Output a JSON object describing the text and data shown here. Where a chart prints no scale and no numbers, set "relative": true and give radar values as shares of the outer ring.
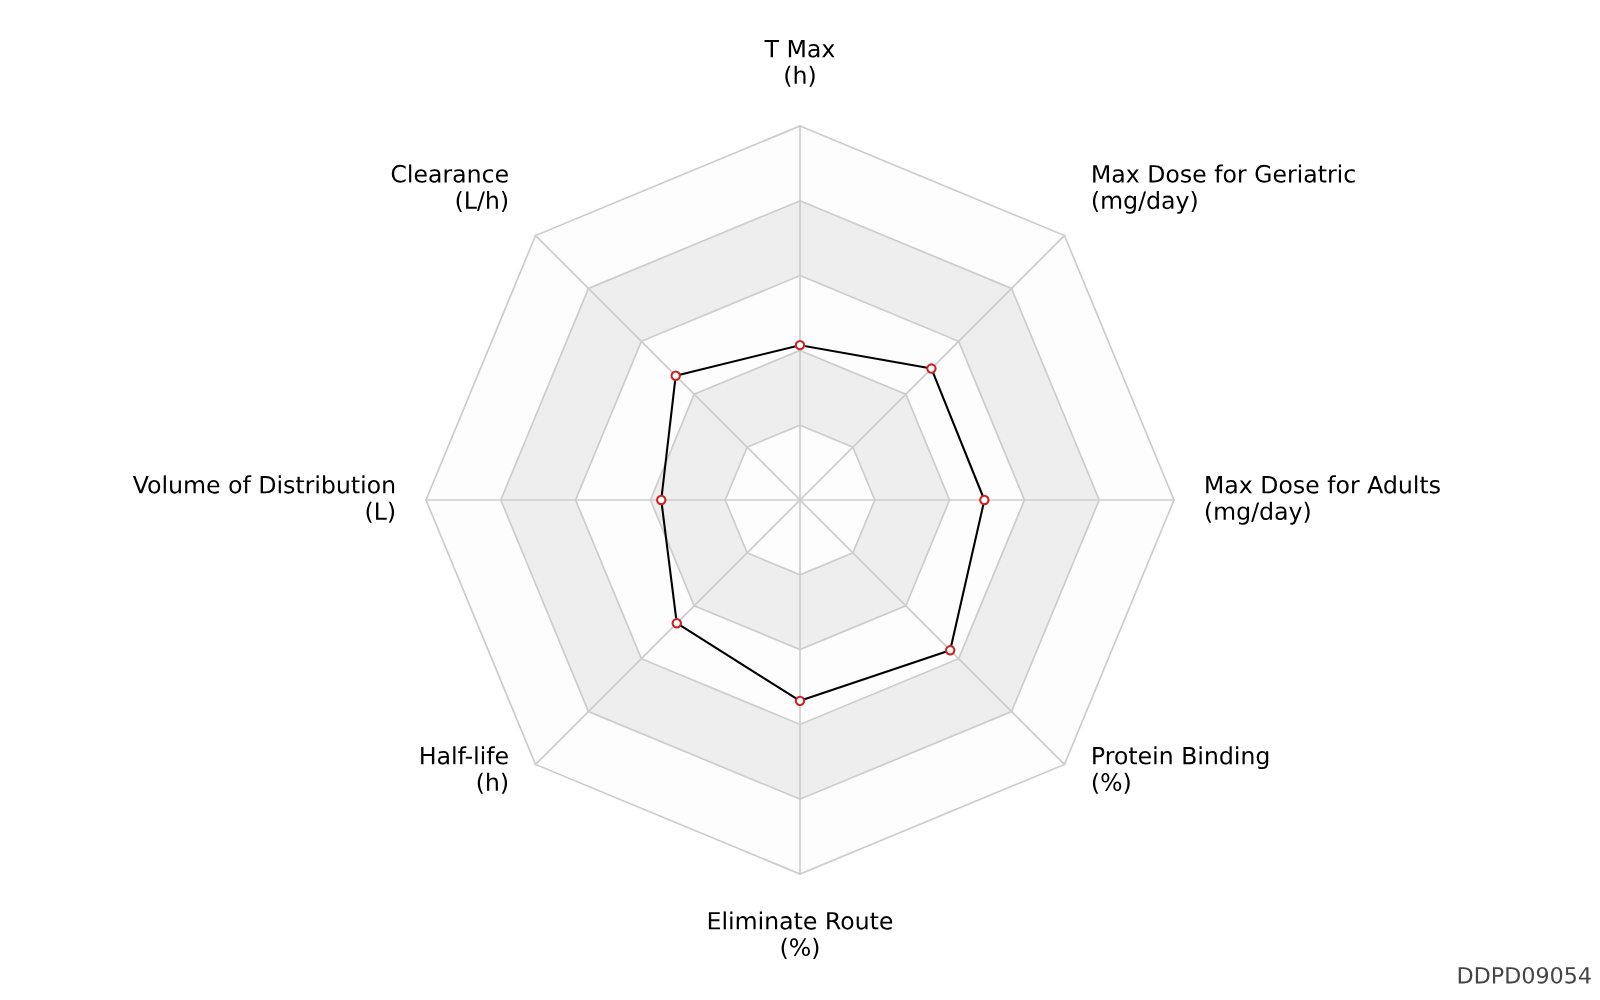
{
  "chart_data": {
    "type": "radar",
    "relative": true,
    "grid": true,
    "marker": "circle",
    "line_style": "solid",
    "categories": [
      "T Max\n(h)",
      "Max Dose for Geriatric\n(mg/day)",
      "Max Dose for Adults\n(mg/day)",
      "Protein Binding\n(%)",
      "Eliminate Route\n(%)",
      "Half-life\n(h)",
      "Volume of Distribution\n(L)",
      "Clearance\n(L/h)"
    ],
    "series": [
      {
        "color": "#000000",
        "values": [
          0.414,
          0.497,
          0.493,
          0.568,
          0.537,
          0.466,
          0.371,
          0.47
        ]
      }
    ],
    "annotations": [
      "DDPD09054"
    ]
  }
}
